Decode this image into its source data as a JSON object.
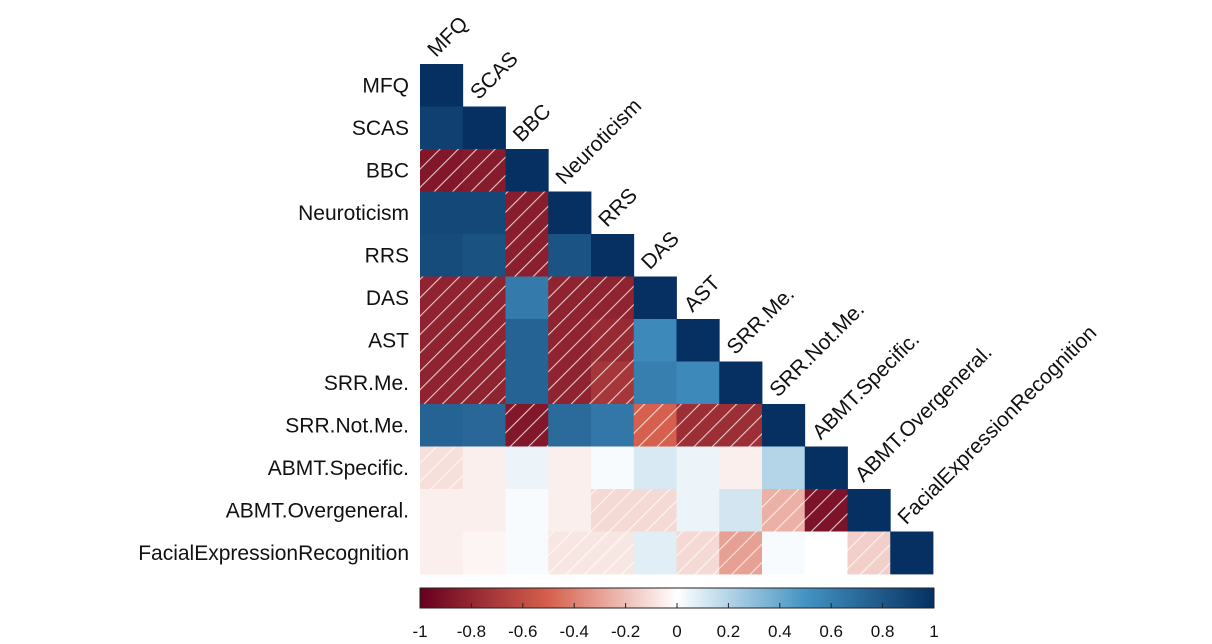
{
  "chart_data": {
    "type": "heatmap",
    "layout": "lower-triangle correlation matrix",
    "variables": [
      "MFQ",
      "SCAS",
      "BBC",
      "Neuroticism",
      "RRS",
      "DAS",
      "AST",
      "SRR.Me.",
      "SRR.Not.Me.",
      "ABMT.Specific.",
      "ABMT.Overgeneral.",
      "FacialExpressionRecognition"
    ],
    "values": [
      [
        1.0
      ],
      [
        0.92,
        1.0
      ],
      [
        -0.88,
        -0.86,
        1.0
      ],
      [
        0.88,
        0.88,
        -0.85,
        1.0
      ],
      [
        0.86,
        0.83,
        -0.84,
        0.82,
        1.0
      ],
      [
        -0.82,
        -0.82,
        0.62,
        -0.82,
        -0.82,
        1.0
      ],
      [
        -0.82,
        -0.82,
        0.74,
        -0.82,
        -0.78,
        0.55,
        1.0
      ],
      [
        -0.82,
        -0.82,
        0.74,
        -0.82,
        -0.72,
        0.6,
        0.55,
        1.0
      ],
      [
        0.74,
        0.72,
        -0.88,
        0.7,
        0.64,
        -0.5,
        -0.76,
        -0.76,
        1.0
      ],
      [
        -0.1,
        -0.05,
        0.05,
        -0.05,
        0.02,
        0.1,
        0.05,
        -0.05,
        0.2,
        1.0
      ],
      [
        -0.05,
        -0.05,
        0.02,
        -0.05,
        -0.12,
        -0.12,
        0.05,
        0.12,
        -0.25,
        -0.9,
        1.0
      ],
      [
        -0.05,
        -0.03,
        0.02,
        -0.08,
        -0.08,
        0.08,
        -0.12,
        -0.3,
        0.02,
        0.0,
        -0.15,
        1.0
      ]
    ],
    "hatched_cells": [
      [
        2,
        0
      ],
      [
        2,
        1
      ],
      [
        3,
        2
      ],
      [
        4,
        2
      ],
      [
        5,
        0
      ],
      [
        5,
        1
      ],
      [
        5,
        3
      ],
      [
        5,
        4
      ],
      [
        6,
        0
      ],
      [
        6,
        1
      ],
      [
        6,
        3
      ],
      [
        6,
        4
      ],
      [
        7,
        0
      ],
      [
        7,
        1
      ],
      [
        7,
        3
      ],
      [
        7,
        4
      ],
      [
        8,
        2
      ],
      [
        8,
        5
      ],
      [
        8,
        6
      ],
      [
        8,
        7
      ],
      [
        9,
        0
      ],
      [
        10,
        4
      ],
      [
        10,
        5
      ],
      [
        10,
        8
      ],
      [
        10,
        9
      ],
      [
        11,
        3
      ],
      [
        11,
        4
      ],
      [
        11,
        6
      ],
      [
        11,
        7
      ],
      [
        11,
        10
      ]
    ],
    "colorbar": {
      "range": [
        -1,
        1
      ],
      "ticks": [
        "-1",
        "-0.8",
        "-0.6",
        "-0.4",
        "-0.2",
        "0",
        "0.2",
        "0.4",
        "0.6",
        "0.8",
        "1"
      ],
      "placement": "bottom",
      "colors": {
        "negative": "#67001f",
        "mid_negative": "#d6604d",
        "neutral": "#ffffff",
        "mid_positive": "#4393c3",
        "positive": "#053061"
      }
    }
  }
}
